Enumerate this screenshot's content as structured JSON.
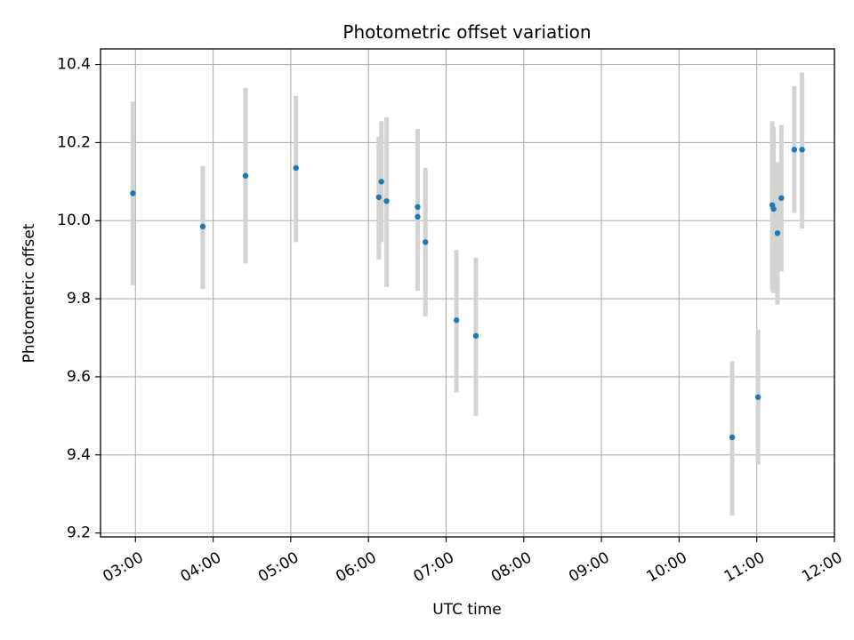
{
  "chart_data": {
    "type": "scatter",
    "title": "Photometric offset variation",
    "xlabel": "UTC time",
    "ylabel": "Photometric offset",
    "x_ticks": [
      "03:00",
      "04:00",
      "05:00",
      "06:00",
      "07:00",
      "08:00",
      "09:00",
      "10:00",
      "11:00",
      "12:00"
    ],
    "y_ticks": [
      "9.2",
      "9.4",
      "9.6",
      "9.8",
      "10.0",
      "10.2",
      "10.4"
    ],
    "xlim": [
      "02:33",
      "12:00"
    ],
    "ylim": [
      9.19,
      10.44
    ],
    "grid": true,
    "colors": {
      "marker": "#1f77b4",
      "errorbar": "#d3d3d3",
      "grid": "#b0b0b0"
    },
    "points": [
      {
        "x": "02:58",
        "y": 10.07,
        "err_low": 9.835,
        "err_high": 10.305
      },
      {
        "x": "03:52",
        "y": 9.985,
        "err_low": 9.825,
        "err_high": 10.14
      },
      {
        "x": "04:25",
        "y": 10.115,
        "err_low": 9.89,
        "err_high": 10.34
      },
      {
        "x": "05:04",
        "y": 10.135,
        "err_low": 9.945,
        "err_high": 10.32
      },
      {
        "x": "06:08",
        "y": 10.06,
        "err_low": 9.9,
        "err_high": 10.215
      },
      {
        "x": "06:10",
        "y": 10.1,
        "err_low": 9.945,
        "err_high": 10.255
      },
      {
        "x": "06:14",
        "y": 10.05,
        "err_low": 9.83,
        "err_high": 10.265
      },
      {
        "x": "06:38",
        "y": 10.035,
        "err_low": 9.835,
        "err_high": 10.235
      },
      {
        "x": "06:38",
        "y": 10.01,
        "err_low": 9.82,
        "err_high": 10.2
      },
      {
        "x": "06:44",
        "y": 9.945,
        "err_low": 9.755,
        "err_high": 10.135
      },
      {
        "x": "07:08",
        "y": 9.745,
        "err_low": 9.56,
        "err_high": 9.925
      },
      {
        "x": "07:23",
        "y": 9.705,
        "err_low": 9.5,
        "err_high": 9.905
      },
      {
        "x": "10:41",
        "y": 9.445,
        "err_low": 9.245,
        "err_high": 9.64
      },
      {
        "x": "11:01",
        "y": 9.548,
        "err_low": 9.375,
        "err_high": 9.72
      },
      {
        "x": "11:12",
        "y": 10.04,
        "err_low": 9.82,
        "err_high": 10.255
      },
      {
        "x": "11:13",
        "y": 10.03,
        "err_low": 9.815,
        "err_high": 10.24
      },
      {
        "x": "11:16",
        "y": 9.968,
        "err_low": 9.785,
        "err_high": 10.15
      },
      {
        "x": "11:19",
        "y": 10.058,
        "err_low": 9.87,
        "err_high": 10.245
      },
      {
        "x": "11:29",
        "y": 10.182,
        "err_low": 10.02,
        "err_high": 10.345
      },
      {
        "x": "11:35",
        "y": 10.182,
        "err_low": 9.98,
        "err_high": 10.38
      }
    ]
  }
}
